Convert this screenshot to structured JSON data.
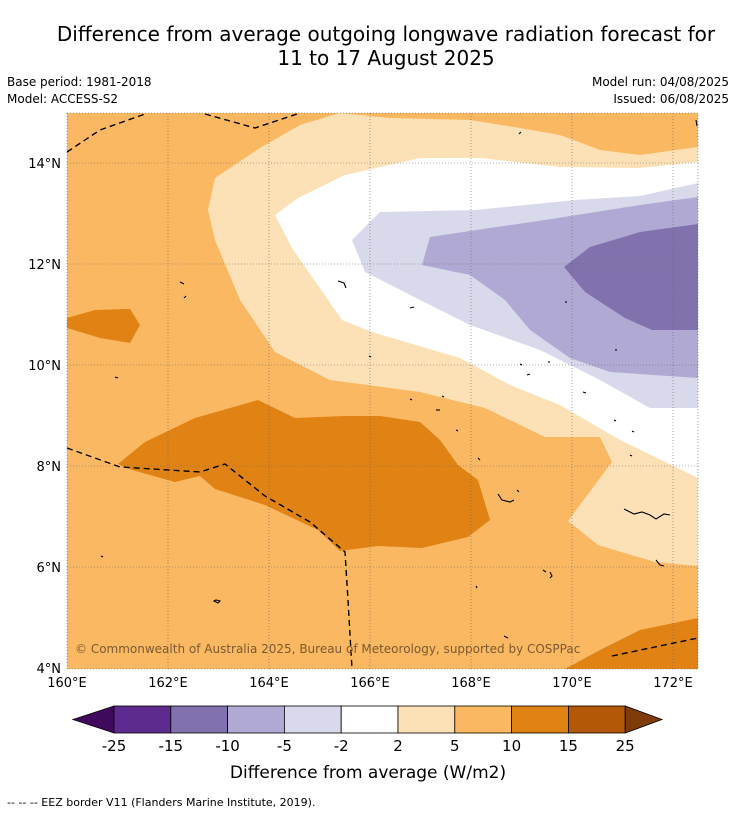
{
  "title": "Difference from average outgoing longwave radiation forecast for\n11 to 17 August 2025",
  "base_period": "Base period: 1981-2018",
  "model": "Model: ACCESS-S2",
  "model_run": "Model run: 04/08/2025",
  "issued": "Issued: 06/08/2025",
  "copyright": "© Commonwealth of Australia 2025, Bureau of Meteorology, supported by COSPPac",
  "lon_ticks": [
    "160°E",
    "162°E",
    "164°E",
    "166°E",
    "168°E",
    "170°E",
    "172°E"
  ],
  "lat_ticks": [
    "14°N",
    "12°N",
    "10°N",
    "8°N",
    "6°N",
    "4°N"
  ],
  "colorbar": {
    "title": "Difference from average (W/m2)",
    "labels": [
      "-25",
      "-15",
      "-10",
      "-5",
      "-2",
      "2",
      "5",
      "10",
      "15",
      "25"
    ],
    "colors": [
      "#3f0a5c",
      "#5d2a8e",
      "#8171ad",
      "#b0a9d3",
      "#d9d9ec",
      "#ffffff",
      "#fde1b6",
      "#fbb862",
      "#e08214",
      "#b35806",
      "#7f3b08"
    ]
  },
  "footnote": "--  --  -- EEZ border V11 (Flanders Marine Institute, 2019)."
}
